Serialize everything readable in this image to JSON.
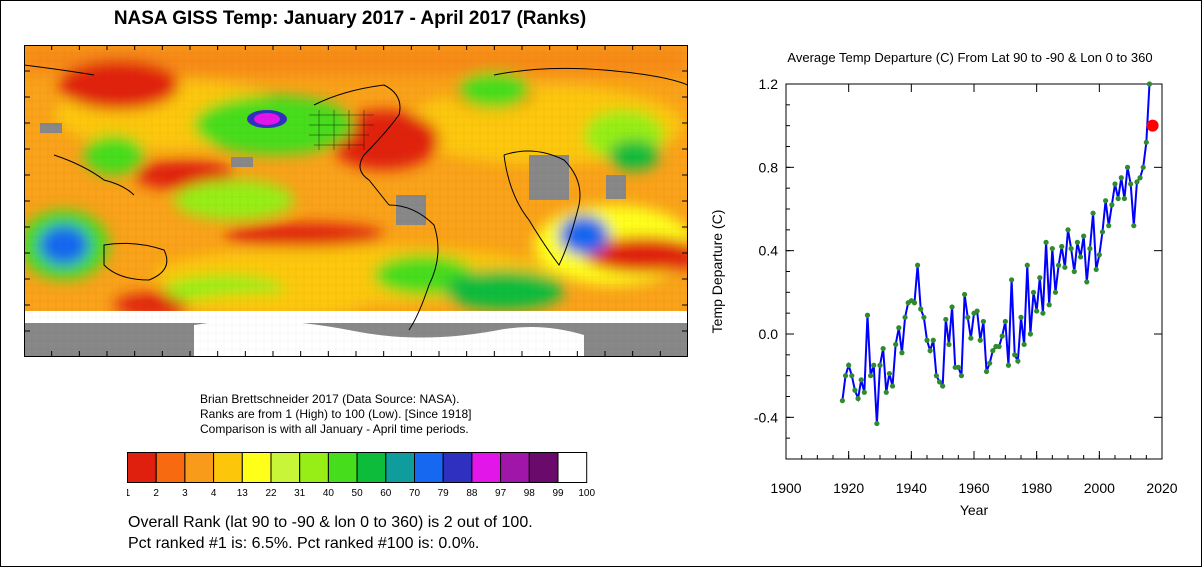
{
  "left_title": "NASA GISS Temp: January 2017 - April 2017 (Ranks)",
  "credits": [
    "Brian Brettschneider 2017 (Data Source: NASA).",
    "Ranks are from 1 (High) to 100 (Low). [Since 1918]",
    "Comparison is with all January - April time periods."
  ],
  "colorbar": {
    "colors": [
      "#e0200e",
      "#f86a10",
      "#f89a1a",
      "#fcc70a",
      "#ffff1a",
      "#c8f538",
      "#96ee16",
      "#46dd1d",
      "#0ebc3c",
      "#0e9c9c",
      "#1668f0",
      "#3030c0",
      "#e216e8",
      "#a016a8",
      "#6a0a6a",
      "#ffffff"
    ],
    "labels": [
      "1",
      "2",
      "3",
      "4",
      "13",
      "22",
      "31",
      "40",
      "50",
      "60",
      "70",
      "79",
      "88",
      "97",
      "98",
      "99",
      "100"
    ]
  },
  "overall_rank_text": "Overall Rank (lat 90 to -90 & lon 0 to 360) is 2 out of 100.",
  "pct_text": "Pct ranked #1 is:   6.5%.     Pct ranked #100 is:   0.0%.",
  "chart_data": {
    "type": "line",
    "title": "Average Temp Departure (C) From Lat 90 to -90 & Lon 0 to 360",
    "xlabel": "Year",
    "ylabel": "Temp Departure (C)",
    "xlim": [
      1900,
      2020
    ],
    "ylim": [
      -0.6,
      1.2
    ],
    "x_ticks": [
      "1900",
      "1920",
      "1940",
      "1960",
      "1980",
      "2000",
      "2020"
    ],
    "y_ticks": [
      "-0.4",
      "0.0",
      "0.4",
      "0.8",
      "1.2"
    ],
    "line_color": "#0000ff",
    "marker_color": "#2e8b2e",
    "highlight_color": "#ff0000",
    "series": [
      {
        "x": [
          1918,
          1919,
          1920,
          1921,
          1922,
          1923,
          1924,
          1925,
          1926,
          1927,
          1928,
          1929,
          1930,
          1931,
          1932,
          1933,
          1934,
          1935,
          1936,
          1937,
          1938,
          1939,
          1940,
          1941,
          1942,
          1943,
          1944,
          1945,
          1946,
          1947,
          1948,
          1949,
          1950,
          1951,
          1952,
          1953,
          1954,
          1955,
          1956,
          1957,
          1958,
          1959,
          1960,
          1961,
          1962,
          1963,
          1964,
          1965,
          1966,
          1967,
          1968,
          1969,
          1970,
          1971,
          1972,
          1973,
          1974,
          1975,
          1976,
          1977,
          1978,
          1979,
          1980,
          1981,
          1982,
          1983,
          1984,
          1985,
          1986,
          1987,
          1988,
          1989,
          1990,
          1991,
          1992,
          1993,
          1994,
          1995,
          1996,
          1997,
          1998,
          1999,
          2000,
          2001,
          2002,
          2003,
          2004,
          2005,
          2006,
          2007,
          2008,
          2009,
          2010,
          2011,
          2012,
          2013,
          2014,
          2015,
          2016
        ],
        "y": [
          -0.32,
          -0.2,
          -0.15,
          -0.2,
          -0.27,
          -0.31,
          -0.22,
          -0.28,
          0.09,
          -0.2,
          -0.15,
          -0.43,
          -0.15,
          -0.07,
          -0.28,
          -0.19,
          -0.25,
          -0.05,
          0.03,
          -0.09,
          0.08,
          0.15,
          0.16,
          0.15,
          0.33,
          0.12,
          0.08,
          -0.03,
          -0.08,
          -0.03,
          -0.2,
          -0.23,
          -0.25,
          0.07,
          -0.05,
          0.13,
          -0.16,
          -0.16,
          -0.2,
          0.19,
          0.08,
          -0.02,
          0.1,
          0.11,
          -0.03,
          0.06,
          -0.18,
          -0.14,
          -0.08,
          -0.06,
          -0.06,
          -0.01,
          0.06,
          -0.15,
          0.26,
          -0.1,
          -0.13,
          0.08,
          -0.05,
          0.33,
          0.0,
          0.2,
          0.11,
          0.27,
          0.1,
          0.44,
          0.14,
          0.41,
          0.2,
          0.33,
          0.42,
          0.32,
          0.5,
          0.41,
          0.3,
          0.44,
          0.37,
          0.47,
          0.25,
          0.41,
          0.58,
          0.31,
          0.38,
          0.49,
          0.64,
          0.52,
          0.62,
          0.72,
          0.65,
          0.75,
          0.65,
          0.8,
          0.72,
          0.52,
          0.73,
          0.75,
          0.8,
          0.92,
          1.2
        ]
      },
      {
        "name": "",
        "x": [
          2017
        ],
        "y": [
          1.0
        ]
      }
    ]
  }
}
